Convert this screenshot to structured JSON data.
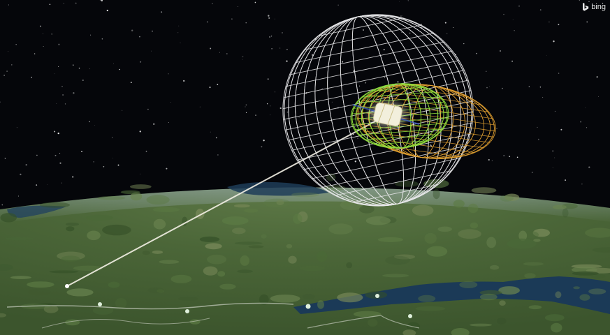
{
  "logo": {
    "text": "bing"
  },
  "colors": {
    "space": "#05060a",
    "earth_land": "#4e6a3c",
    "earth_water": "#1f3d58",
    "mesh_outer": "#e8e8ea",
    "mesh_middle": "#e0a030",
    "mesh_inner": "#8fdc3c",
    "satellite_body": "#f2efdc",
    "link_beam": "#f4f1e6"
  }
}
